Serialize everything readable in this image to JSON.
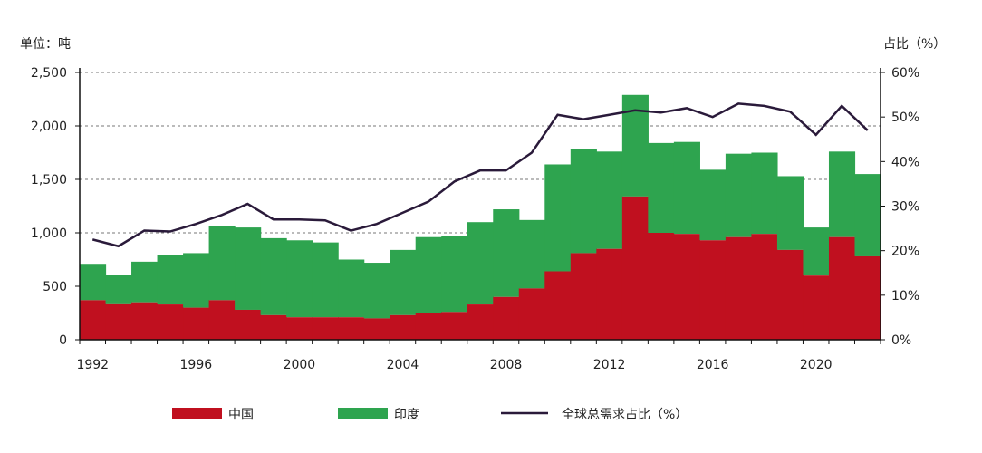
{
  "chart_data": {
    "type": "bar",
    "subtype": "stacked-step-area with line on secondary axis",
    "y_left_label": "单位：吨",
    "y_right_label": "占比（%）",
    "ylim_left": [
      0,
      2500
    ],
    "ylim_right": [
      0,
      60
    ],
    "y_left_ticks": [
      "0",
      "500",
      "1,000",
      "1,500",
      "2,000",
      "2,500"
    ],
    "y_right_ticks": [
      "0%",
      "10%",
      "20%",
      "30%",
      "40%",
      "50%",
      "60%"
    ],
    "x_tick_labels": [
      "1992",
      "1996",
      "2000",
      "2004",
      "2008",
      "2012",
      "2016",
      "2020"
    ],
    "grid": "dashed horizontal",
    "legend_position": "bottom",
    "years": [
      1992,
      1993,
      1994,
      1995,
      1996,
      1997,
      1998,
      1999,
      2000,
      2001,
      2002,
      2003,
      2004,
      2005,
      2006,
      2007,
      2008,
      2009,
      2010,
      2011,
      2012,
      2013,
      2014,
      2015,
      2016,
      2017,
      2018,
      2019,
      2020,
      2021,
      2022
    ],
    "series": [
      {
        "name": "中国",
        "color": "#c0101f",
        "axis": "left",
        "values": [
          370,
          340,
          350,
          330,
          300,
          370,
          280,
          230,
          210,
          210,
          210,
          200,
          230,
          250,
          260,
          330,
          400,
          480,
          640,
          810,
          850,
          1340,
          1000,
          990,
          930,
          960,
          990,
          840,
          600,
          960,
          780
        ]
      },
      {
        "name": "印度",
        "color": "#2ea44f",
        "axis": "left",
        "values": [
          340,
          270,
          380,
          460,
          510,
          690,
          770,
          720,
          720,
          700,
          540,
          520,
          610,
          710,
          710,
          770,
          820,
          640,
          1000,
          970,
          910,
          950,
          840,
          860,
          660,
          780,
          760,
          690,
          450,
          800,
          770
        ]
      },
      {
        "name": "全球总需求占比（%）",
        "color": "#2a1a3a",
        "axis": "right",
        "type": "line",
        "values": [
          22.5,
          21,
          24.5,
          24.3,
          26,
          28,
          30.5,
          27,
          27,
          26.8,
          24.5,
          26,
          28.5,
          31,
          35.5,
          38,
          38,
          42,
          50.5,
          49.5,
          50.5,
          51.5,
          51,
          52,
          50,
          53,
          52.5,
          51.2,
          46,
          52.5,
          47
        ]
      }
    ]
  }
}
